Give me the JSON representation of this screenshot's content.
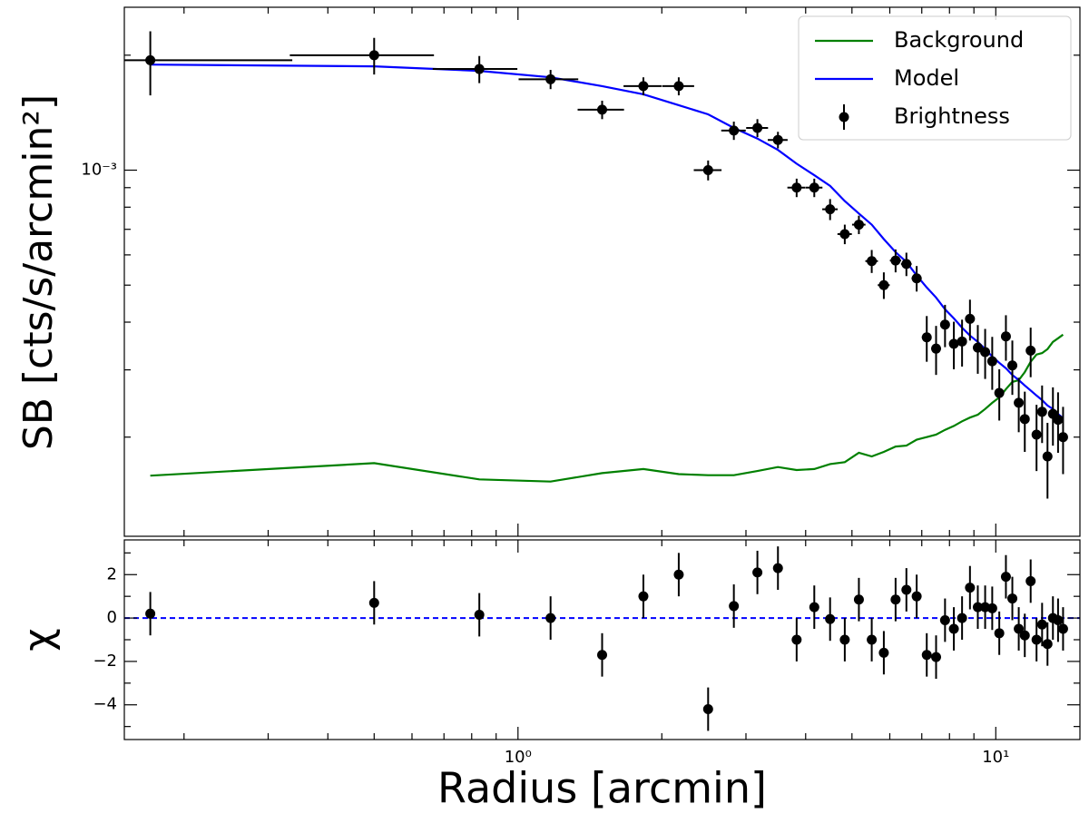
{
  "chart_data": [
    {
      "type": "errorbar",
      "xscale": "log",
      "yscale": "log",
      "ylabel": "SB [cts/s/arcmin²]",
      "x": [
        0.17,
        0.5,
        0.83,
        1.17,
        1.5,
        1.83,
        2.17,
        2.5,
        2.83,
        3.17,
        3.5,
        3.83,
        4.17,
        4.5,
        4.83,
        5.17,
        5.5,
        5.83,
        6.17,
        6.5,
        6.83,
        7.17,
        7.5,
        7.83,
        8.17,
        8.5,
        8.83,
        9.17,
        9.5,
        9.83,
        10.17,
        10.5,
        10.83,
        11.17,
        11.5,
        11.83,
        12.17,
        12.5,
        12.83,
        13.17,
        13.5,
        13.83
      ],
      "xlim": [
        0.15,
        15
      ],
      "xticks": [
        1,
        10
      ],
      "show_xtick_labels": false,
      "xminorticks": [
        0.2,
        0.3,
        0.4,
        0.5,
        0.6,
        0.7,
        0.8,
        0.9,
        2,
        3,
        4,
        5,
        6,
        7,
        8,
        9
      ],
      "ylim": [
        0.00011,
        0.00267
      ],
      "yticks": [
        {
          "value": 0.001,
          "label": "10⁻³"
        }
      ],
      "yminorticks": [
        0.0002,
        0.0003,
        0.0004,
        0.0005,
        0.0006,
        0.0007,
        0.0008,
        0.0009,
        0.002
      ],
      "legend": "upper right",
      "series": [
        {
          "name": "Background",
          "color": "#008000",
          "kind": "line",
          "values": [
            0.0001585,
            0.000171,
            0.000155,
            0.000153,
            0.000161,
            0.000165,
            0.00016,
            0.000159,
            0.000159,
            0.000163,
            0.000167,
            0.000164,
            0.000165,
            0.00017,
            0.000172,
            0.000182,
            0.000178,
            0.000183,
            0.000189,
            0.00019,
            0.000197,
            0.0002,
            0.000203,
            0.000209,
            0.000214,
            0.00022,
            0.000225,
            0.000229,
            0.000237,
            0.000246,
            0.000254,
            0.000267,
            0.000279,
            0.000282,
            0.000296,
            0.000315,
            0.000329,
            0.000332,
            0.00034,
            0.000355,
            0.000363,
            0.000371
          ]
        },
        {
          "name": "Model",
          "color": "#0000ff",
          "kind": "line",
          "values": [
            0.00189,
            0.00187,
            0.00182,
            0.00175,
            0.00166,
            0.00158,
            0.00148,
            0.0014,
            0.00129,
            0.00121,
            0.00113,
            0.00104,
            0.00097,
            0.00091,
            0.00083,
            0.00077,
            0.00072,
            0.00066,
            0.00061,
            0.000575,
            0.00053,
            0.000493,
            0.000464,
            0.000432,
            0.000409,
            0.000387,
            0.000369,
            0.000355,
            0.00034,
            0.000325,
            0.000313,
            0.000303,
            0.000291,
            0.000282,
            0.000273,
            0.000265,
            0.000257,
            0.00025,
            0.000242,
            0.000237,
            0.00023,
            0.000224
          ]
        },
        {
          "name": "Brightness",
          "color": "#000000",
          "kind": "errorbar",
          "xerr": 0.167,
          "values": [
            0.00194,
            0.002,
            0.00184,
            0.00173,
            0.00144,
            0.00166,
            0.00166,
            0.001,
            0.00127,
            0.00129,
            0.0012,
            0.0009,
            0.0009,
            0.00079,
            0.00068,
            0.00072,
            0.000578,
            0.0005,
            0.00058,
            0.000568,
            0.000521,
            0.000365,
            0.000341,
            0.000394,
            0.000351,
            0.000356,
            0.000408,
            0.000343,
            0.000334,
            0.000316,
            0.000261,
            0.000367,
            0.000308,
            0.000246,
            0.000223,
            0.000337,
            0.000203,
            0.000233,
            0.000178,
            0.00023,
            0.000222,
            0.0002
          ],
          "yerr": [
            0.00037,
            0.00022,
            0.00015,
            0.0001,
            8e-05,
            9e-05,
            9e-05,
            6e-05,
            7e-05,
            7e-05,
            6e-05,
            5e-05,
            5e-05,
            5e-05,
            4e-05,
            4e-05,
            4e-05,
            4e-05,
            4e-05,
            4e-05,
            4e-05,
            5e-05,
            5e-05,
            5e-05,
            5e-05,
            5e-05,
            5e-05,
            5e-05,
            5e-05,
            5e-05,
            4e-05,
            5e-05,
            5e-05,
            4e-05,
            4e-05,
            5e-05,
            4e-05,
            4e-05,
            4e-05,
            4e-05,
            4e-05,
            4e-05
          ]
        }
      ]
    },
    {
      "type": "errorbar",
      "xscale": "log",
      "yscale": "linear",
      "ylabel": "χ",
      "xlabel": "Radius [arcmin]",
      "x": [
        0.17,
        0.5,
        0.83,
        1.17,
        1.5,
        1.83,
        2.17,
        2.5,
        2.83,
        3.17,
        3.5,
        3.83,
        4.17,
        4.5,
        4.83,
        5.17,
        5.5,
        5.83,
        6.17,
        6.5,
        6.83,
        7.17,
        7.5,
        7.83,
        8.17,
        8.5,
        8.83,
        9.17,
        9.5,
        9.83,
        10.17,
        10.5,
        10.83,
        11.17,
        11.5,
        11.83,
        12.17,
        12.5,
        12.83,
        13.17,
        13.5,
        13.83
      ],
      "xlim": [
        0.15,
        15
      ],
      "xticks": [
        {
          "value": 1,
          "label": "10⁰"
        },
        {
          "value": 10,
          "label": "10¹"
        }
      ],
      "show_xtick_labels": true,
      "xminorticks": [
        0.2,
        0.3,
        0.4,
        0.5,
        0.6,
        0.7,
        0.8,
        0.9,
        2,
        3,
        4,
        5,
        6,
        7,
        8,
        9
      ],
      "ylim": [
        -5.6,
        3.6
      ],
      "yticks": [
        {
          "value": -4,
          "label": "−4"
        },
        {
          "value": -2,
          "label": "−2"
        },
        0,
        2
      ],
      "yminorticks": [
        -5,
        -3,
        -1,
        1,
        3
      ],
      "reference_line": {
        "value": 0,
        "color": "#0000ff"
      },
      "series": [
        {
          "color": "#000000",
          "kind": "errorbar",
          "yerr": 1,
          "values": [
            0.2,
            0.7,
            0.15,
            0.0,
            -1.7,
            1.0,
            2.0,
            -4.2,
            0.55,
            2.1,
            2.3,
            -1.0,
            0.5,
            -0.05,
            -1.0,
            0.85,
            -1.0,
            -1.6,
            0.85,
            1.3,
            1.0,
            -1.7,
            -1.8,
            -0.1,
            -0.5,
            0.0,
            1.4,
            0.5,
            0.5,
            0.45,
            -0.7,
            1.9,
            0.9,
            -0.5,
            -0.8,
            1.7,
            -1.0,
            -0.3,
            -1.2,
            0.0,
            -0.1,
            -0.5
          ]
        }
      ]
    }
  ]
}
